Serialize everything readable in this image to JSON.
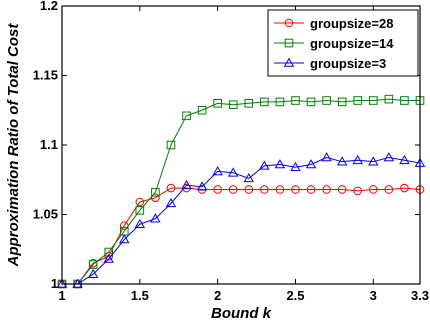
{
  "chart_data": {
    "type": "line",
    "xlabel": "Bound k",
    "ylabel": "Approximation Ratio of Total Cost",
    "xlim": [
      1,
      3.3
    ],
    "ylim": [
      1,
      1.2
    ],
    "x_ticks": [
      1,
      1.5,
      2,
      2.5,
      3,
      3.3
    ],
    "x_tick_labels": [
      "1",
      "1.5",
      "2",
      "2.5",
      "3",
      "3.3"
    ],
    "y_ticks": [
      1,
      1.05,
      1.1,
      1.15,
      1.2
    ],
    "y_tick_labels": [
      "1",
      "1.05",
      "1.1",
      "1.15",
      "1.2"
    ],
    "grid": false,
    "legend_position": "top-right",
    "x": [
      1.0,
      1.1,
      1.2,
      1.3,
      1.4,
      1.5,
      1.6,
      1.7,
      1.8,
      1.9,
      2.0,
      2.1,
      2.2,
      2.3,
      2.4,
      2.5,
      2.6,
      2.7,
      2.8,
      2.9,
      3.0,
      3.1,
      3.2,
      3.3
    ],
    "series": [
      {
        "name": "groupsize=28",
        "color": "#ff0000",
        "marker": "circle",
        "values": [
          1.0,
          1.0,
          1.015,
          1.02,
          1.042,
          1.059,
          1.062,
          1.069,
          1.069,
          1.068,
          1.068,
          1.068,
          1.068,
          1.068,
          1.068,
          1.068,
          1.068,
          1.068,
          1.068,
          1.067,
          1.068,
          1.068,
          1.069,
          1.068
        ]
      },
      {
        "name": "groupsize=14",
        "color": "#008000",
        "marker": "square",
        "values": [
          1.0,
          1.0,
          1.014,
          1.023,
          1.038,
          1.053,
          1.066,
          1.1,
          1.121,
          1.125,
          1.13,
          1.129,
          1.13,
          1.131,
          1.131,
          1.132,
          1.131,
          1.132,
          1.131,
          1.132,
          1.132,
          1.133,
          1.132,
          1.132
        ]
      },
      {
        "name": "groupsize=3",
        "color": "#0000ff",
        "marker": "triangle",
        "values": [
          1.0,
          1.0,
          1.007,
          1.018,
          1.032,
          1.043,
          1.047,
          1.058,
          1.071,
          1.07,
          1.081,
          1.08,
          1.076,
          1.085,
          1.086,
          1.084,
          1.086,
          1.091,
          1.088,
          1.089,
          1.088,
          1.091,
          1.089,
          1.087
        ]
      }
    ]
  }
}
